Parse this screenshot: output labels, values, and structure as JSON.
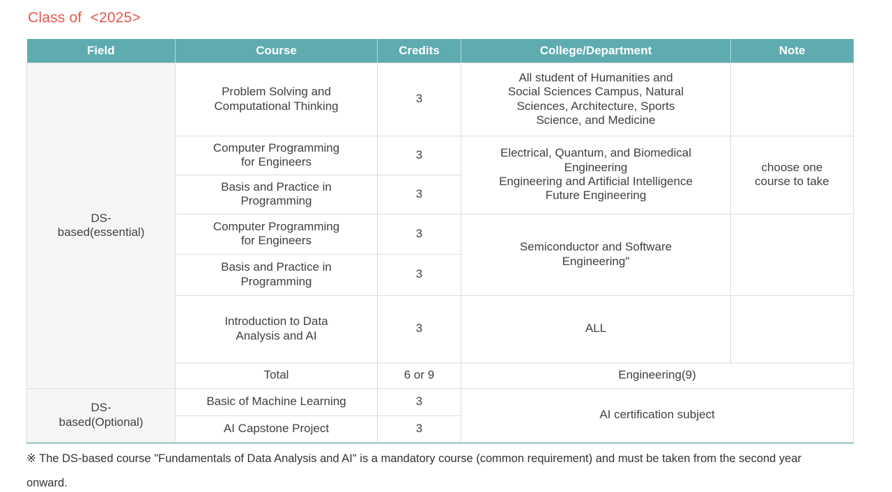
{
  "page": {
    "title": "Class of  <2025>",
    "footnote": "※ The DS-based course \"Fundamentals of Data Analysis and AI\" is a mandatory course (common requirement) and must be taken from the second year onward."
  },
  "colors": {
    "title_text": "#e4584c",
    "header_bg": "#5facb0",
    "header_text": "#ffffff",
    "grid_border": "#dddddd",
    "field_column_bg": "#f6f6f6",
    "table_bottom_accent": "#aed3d5",
    "body_text": "#3f3f3f"
  },
  "table": {
    "columns": [
      "Field",
      "Course",
      "Credits",
      "College/Department",
      "Note"
    ],
    "essential": {
      "field": "DS-\nbased(essential)",
      "rows": [
        {
          "course": "Problem Solving and\nComputational Thinking",
          "credits": "3",
          "college": "All student of Humanities and\nSocial Sciences Campus, Natural\nSciences, Architecture, Sports\nScience, and Medicine",
          "note": ""
        },
        {
          "course": "Computer Programming\nfor Engineers",
          "credits": "3",
          "college": "Electrical, Quantum, and Biomedical\nEngineering\nEngineering and Artificial Intelligence\nFuture Engineering",
          "note": "choose one\ncourse to take"
        },
        {
          "course": "Basis and Practice in\nProgramming",
          "credits": "3"
        },
        {
          "course": "Computer Programming\nfor Engineers",
          "credits": "3",
          "college": "Semiconductor and Software\nEngineering\"",
          "note": ""
        },
        {
          "course": "Basis and Practice in\nProgramming",
          "credits": "3"
        },
        {
          "course": "Introduction to Data\nAnalysis and AI",
          "credits": "3",
          "college": "ALL",
          "note": ""
        }
      ],
      "total": {
        "label": "Total",
        "credits": "6 or 9",
        "college_note": "Engineering(9)"
      }
    },
    "optional": {
      "field": "DS-\nbased(Optional)",
      "rows": [
        {
          "course": "Basic of Machine Learning",
          "credits": "3"
        },
        {
          "course": "AI Capstone Project",
          "credits": "3"
        }
      ],
      "college_note": "AI certification subject"
    }
  }
}
